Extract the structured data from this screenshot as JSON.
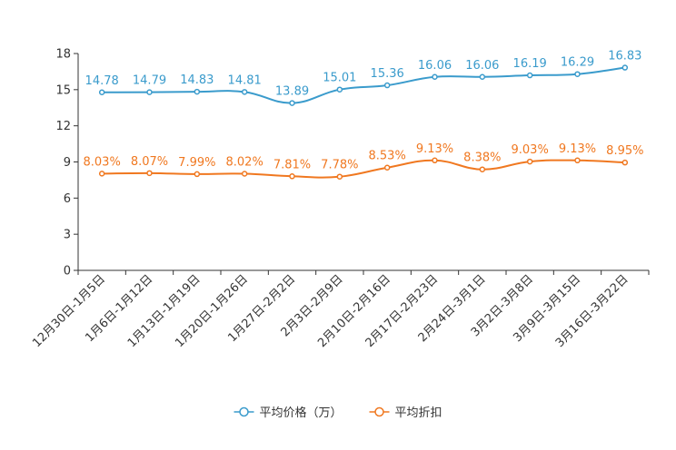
{
  "chart_data": {
    "type": "line",
    "title": "",
    "xlabel": "",
    "ylabel": "",
    "ylim": [
      0,
      18
    ],
    "yticks": [
      0,
      3,
      6,
      9,
      12,
      15,
      18
    ],
    "grid": false,
    "legend_position": "bottom-center",
    "categories": [
      "12月30日-1月5日",
      "1月6日-1月12日",
      "1月13日-1月19日",
      "1月20日-1月26日",
      "1月27日-2月2日",
      "2月3日-2月9日",
      "2月10日-2月16日",
      "2月17日-2月23日",
      "2月24日-3月1日",
      "3月2日-3月8日",
      "3月9日-3月15日",
      "3月16日-3月22日"
    ],
    "series": [
      {
        "name": "平均价格（万）",
        "color": "#3a9bcc",
        "values": [
          14.78,
          14.79,
          14.83,
          14.81,
          13.89,
          15.01,
          15.36,
          16.06,
          16.06,
          16.19,
          16.29,
          16.83
        ],
        "labels": [
          "14.78",
          "14.79",
          "14.83",
          "14.81",
          "13.89",
          "15.01",
          "15.36",
          "16.06",
          "16.06",
          "16.19",
          "16.29",
          "16.83"
        ]
      },
      {
        "name": "平均折扣",
        "color": "#f07820",
        "values": [
          8.03,
          8.07,
          7.99,
          8.02,
          7.81,
          7.78,
          8.53,
          9.13,
          8.38,
          9.03,
          9.13,
          8.95
        ],
        "labels": [
          "8.03%",
          "8.07%",
          "7.99%",
          "8.02%",
          "7.81%",
          "7.78%",
          "8.53%",
          "9.13%",
          "8.38%",
          "9.03%",
          "9.13%",
          "8.95%"
        ]
      }
    ]
  }
}
